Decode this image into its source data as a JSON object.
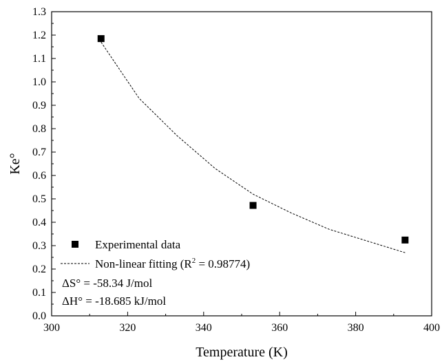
{
  "chart_data": {
    "type": "scatter",
    "title": "",
    "xlabel": "Temperature (K)",
    "ylabel": "Ke°",
    "xlim": [
      300,
      400
    ],
    "ylim": [
      0.0,
      1.3
    ],
    "xticks": [
      300,
      320,
      340,
      360,
      380,
      400
    ],
    "yticks": [
      0.0,
      0.1,
      0.2,
      0.3,
      0.4,
      0.5,
      0.6,
      0.7,
      0.8,
      0.9,
      1.0,
      1.1,
      1.2,
      1.3
    ],
    "ytick_labels": [
      "0.0",
      "0.1",
      "0.2",
      "0.3",
      "0.4",
      "0.5",
      "0.6",
      "0.7",
      "0.8",
      "0.9",
      "1.0",
      "1.1",
      "1.2",
      "1.3"
    ],
    "grid": false,
    "series": [
      {
        "name": "Experimental data",
        "kind": "scatter",
        "marker": "square",
        "color": "#000000",
        "x": [
          313,
          353,
          393
        ],
        "y": [
          1.185,
          0.472,
          0.324
        ]
      },
      {
        "name": "Non-linear fitting (R² = 0.98774)",
        "kind": "line",
        "style": "dashed",
        "color": "#000000",
        "x": [
          313,
          323,
          333,
          343,
          353,
          363,
          373,
          383,
          393
        ],
        "y": [
          1.17,
          0.93,
          0.77,
          0.63,
          0.52,
          0.44,
          0.37,
          0.32,
          0.27
        ]
      }
    ],
    "legend": {
      "placement": "bottom-left",
      "scatter_label": "Experimental data",
      "fit_label_prefix": "Non-linear fitting (R",
      "fit_label_sup": "2",
      "fit_label_suffix": " = 0.98774)"
    },
    "annotations": {
      "entropy": "ΔS°  = -58.34 J/mol",
      "enthalpy": "ΔH°  = -18.685 kJ/mol"
    }
  }
}
